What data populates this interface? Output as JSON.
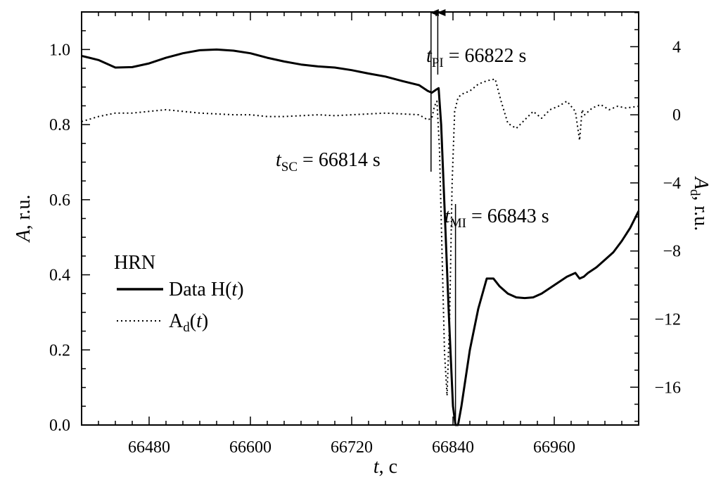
{
  "chart_data": {
    "type": "line",
    "xlabel": {
      "italic": "t",
      "rest": ", c"
    },
    "ylabel_left": {
      "italic": "A",
      "rest": ", r.u."
    },
    "ylabel_right": {
      "italic": "A",
      "sub": "d",
      "rest": ", r.u."
    },
    "x_ticks": [
      66480,
      66600,
      66720,
      66840,
      66960
    ],
    "xlim": [
      66400,
      67060
    ],
    "y_left_ticks": [
      "0.0",
      "0.2",
      "0.4",
      "0.6",
      "0.8",
      "1.0"
    ],
    "ylim_left": [
      0.0,
      1.1
    ],
    "y_right_ticks": [
      "4",
      "0",
      "−4",
      "−8",
      "−12",
      "−16"
    ],
    "ylim_right": [
      -18.22,
      6.04
    ],
    "legend": {
      "title": "HRN",
      "entries": [
        {
          "name": "Data H(t)",
          "style": "solid",
          "label_main": "Data H(",
          "label_italic": "t",
          "label_end": ")"
        },
        {
          "name": "A_d(t)",
          "style": "dotted",
          "label_main": "A",
          "label_sub": "d",
          "label_open": "(",
          "label_italic": "t",
          "label_end": ")"
        }
      ]
    },
    "annotations": [
      {
        "id": "pi",
        "t_italic": "t",
        "sub": "PI",
        "text": " = 66822 s",
        "x": 66822
      },
      {
        "id": "sc",
        "t_italic": "t",
        "sub": "SC",
        "text": " = 66814 s",
        "x": 66814
      },
      {
        "id": "mi",
        "t_italic": "t",
        "sub": "MI",
        "text": " = 66843 s",
        "x": 66843
      }
    ],
    "series": [
      {
        "name": "Data H(t)",
        "axis": "left",
        "style": "solid",
        "x": [
          66400,
          66420,
          66440,
          66460,
          66480,
          66500,
          66520,
          66540,
          66560,
          66580,
          66600,
          66620,
          66640,
          66660,
          66680,
          66700,
          66720,
          66740,
          66760,
          66780,
          66800,
          66810,
          66815,
          66820,
          66823,
          66826,
          66830,
          66835,
          66840,
          66843,
          66846,
          66850,
          66860,
          66870,
          66880,
          66888,
          66895,
          66905,
          66915,
          66925,
          66935,
          66945,
          66955,
          66965,
          66975,
          66985,
          66990,
          66995,
          67000,
          67010,
          67020,
          67030,
          67040,
          67050,
          67060
        ],
        "y": [
          0.983,
          0.972,
          0.952,
          0.953,
          0.963,
          0.978,
          0.99,
          0.998,
          1.0,
          0.997,
          0.99,
          0.978,
          0.968,
          0.96,
          0.955,
          0.952,
          0.945,
          0.936,
          0.928,
          0.916,
          0.905,
          0.89,
          0.885,
          0.893,
          0.897,
          0.8,
          0.58,
          0.3,
          0.05,
          0.0,
          0.0,
          0.05,
          0.2,
          0.31,
          0.39,
          0.39,
          0.37,
          0.35,
          0.34,
          0.338,
          0.34,
          0.35,
          0.365,
          0.38,
          0.395,
          0.405,
          0.39,
          0.395,
          0.405,
          0.42,
          0.44,
          0.46,
          0.49,
          0.525,
          0.57
        ]
      },
      {
        "name": "A_d(t)",
        "axis": "right",
        "style": "dotted",
        "x": [
          66400,
          66420,
          66440,
          66460,
          66480,
          66500,
          66520,
          66540,
          66560,
          66580,
          66600,
          66620,
          66640,
          66660,
          66680,
          66700,
          66720,
          66740,
          66760,
          66780,
          66800,
          66810,
          66815,
          66818,
          66821,
          66824,
          66827,
          66830,
          66833,
          66836,
          66839,
          66842,
          66846,
          66850,
          66860,
          66870,
          66880,
          66890,
          66897,
          66905,
          66915,
          66925,
          66935,
          66945,
          66955,
          66965,
          66975,
          66985,
          66990,
          66993,
          66996,
          67005,
          67015,
          67025,
          67035,
          67045,
          67060
        ],
        "y": [
          -0.4,
          -0.1,
          0.1,
          0.1,
          0.2,
          0.3,
          0.2,
          0.1,
          0.05,
          0.0,
          0.0,
          -0.1,
          -0.1,
          -0.05,
          0.0,
          -0.05,
          0.0,
          0.05,
          0.1,
          0.05,
          0.0,
          -0.3,
          -0.2,
          0.5,
          0.8,
          -2.0,
          -8.0,
          -14.0,
          -16.5,
          -12.0,
          -4.0,
          0.2,
          1.0,
          1.2,
          1.4,
          1.8,
          2.0,
          2.1,
          0.8,
          -0.5,
          -0.8,
          -0.3,
          0.2,
          -0.2,
          0.3,
          0.5,
          0.8,
          0.2,
          -1.5,
          0.3,
          0.0,
          0.4,
          0.6,
          0.3,
          0.5,
          0.4,
          0.5
        ]
      }
    ]
  }
}
